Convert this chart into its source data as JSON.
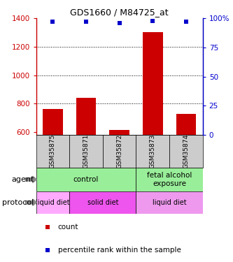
{
  "title": "GDS1660 / M84725_at",
  "samples": [
    "GSM35875",
    "GSM35871",
    "GSM35872",
    "GSM35873",
    "GSM35874"
  ],
  "counts": [
    760,
    840,
    615,
    1305,
    730
  ],
  "percentiles": [
    97,
    97,
    96,
    98,
    97
  ],
  "ylim_left": [
    580,
    1400
  ],
  "ylim_right": [
    0,
    100
  ],
  "yticks_left": [
    600,
    800,
    1000,
    1200,
    1400
  ],
  "yticks_right": [
    0,
    25,
    50,
    75,
    100
  ],
  "bar_color": "#cc0000",
  "dot_color": "#0000cc",
  "sample_box_color": "#cccccc",
  "agent_color": "#99ee99",
  "proto_color_liquid1": "#ffaaff",
  "proto_color_solid": "#ee55ee",
  "proto_color_liquid2": "#ee99ee",
  "legend_count_label": "count",
  "legend_pct_label": "percentile rank within the sample",
  "left_axis_color": "#cc0000",
  "right_axis_color": "#0000cc",
  "arrow_color": "#888888"
}
